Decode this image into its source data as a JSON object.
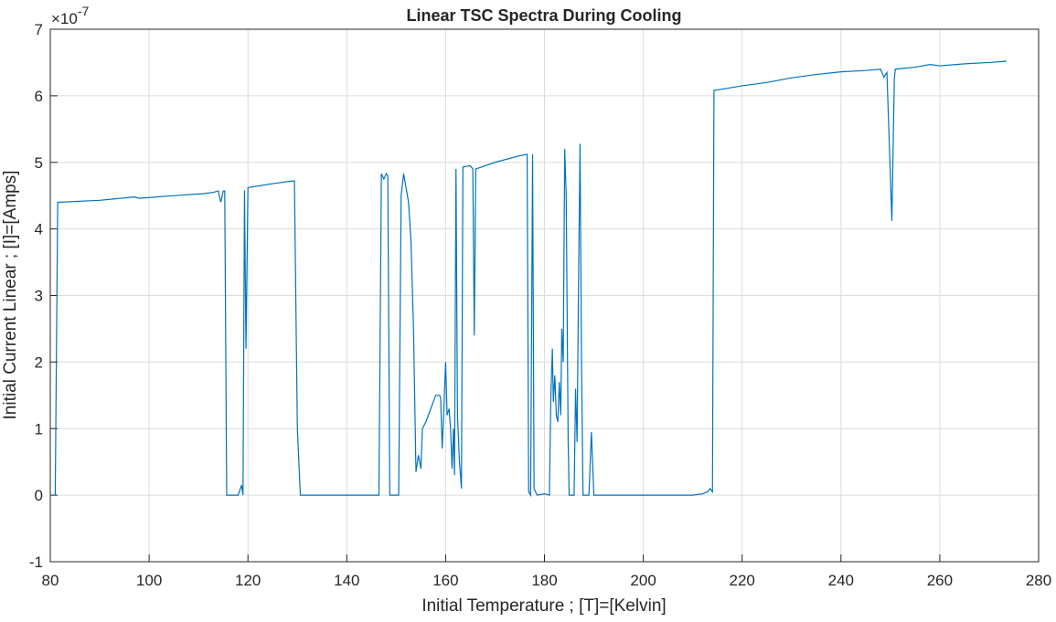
{
  "chart_data": {
    "type": "line",
    "title": "Linear TSC Spectra During Cooling",
    "x_label": "Initial Temperature ; [T]=[Kelvin]",
    "y_label": "Initial Current Linear ; [I]=[Amps]",
    "y_multiplier": {
      "base": "×10",
      "exponent": "-7"
    },
    "x": [
      80.5,
      81,
      81.5,
      90,
      97,
      98,
      105,
      111,
      113,
      114,
      114.5,
      115,
      115.3,
      115.7,
      118,
      118.7,
      119,
      119.3,
      119.6,
      120,
      125,
      129,
      129.4,
      130,
      130.6,
      140,
      146.5,
      147,
      147.5,
      148,
      148.3,
      148.7,
      150.5,
      151,
      151.5,
      152.5,
      153,
      153.5,
      154,
      154.5,
      155,
      155.3,
      156,
      157,
      158,
      158.8,
      159,
      159.3,
      159.6,
      160,
      160.3,
      160.7,
      161,
      161.3,
      161.6,
      161.8,
      162.1,
      162.4,
      162.8,
      163,
      163.2,
      163.5,
      165,
      165.5,
      165.8,
      166.1,
      170,
      175,
      176.5,
      176.8,
      177.2,
      177.6,
      177.9,
      178.5,
      180,
      181,
      181.3,
      181.6,
      181.8,
      182.1,
      182.4,
      182.7,
      183,
      183.3,
      183.5,
      183.8,
      184.1,
      184.4,
      184.8,
      185,
      186,
      186.3,
      186.6,
      186.9,
      187.2,
      187.5,
      187.8,
      189,
      189.5,
      190,
      200,
      210,
      212,
      213,
      213.5,
      214,
      214.3,
      216,
      220,
      225,
      230,
      235,
      240,
      245,
      248,
      248.7,
      249.3,
      250.3,
      250.8,
      251,
      255,
      258,
      260,
      265,
      270,
      273.5
    ],
    "series": [
      {
        "name": "TSC",
        "color": "#0072bd",
        "values": [
          0,
          0,
          4.4,
          4.43,
          4.48,
          4.46,
          4.5,
          4.53,
          4.55,
          4.57,
          4.4,
          4.57,
          4.57,
          0,
          0,
          0.15,
          0,
          4.58,
          2.2,
          4.62,
          4.68,
          4.72,
          4.72,
          1,
          0,
          0,
          0,
          4.83,
          4.75,
          4.83,
          4.8,
          0,
          0,
          4.5,
          4.83,
          4.4,
          3.8,
          2.5,
          0.35,
          0.6,
          0.4,
          1,
          1.1,
          1.3,
          1.5,
          1.5,
          1.45,
          0.7,
          1.2,
          2,
          1.2,
          1.3,
          1,
          0.4,
          1,
          0.3,
          4.9,
          1.2,
          0.5,
          0.3,
          0.1,
          4.93,
          4.95,
          4.9,
          2.4,
          4.9,
          5,
          5.1,
          5.12,
          0.05,
          0,
          5.12,
          0.1,
          0,
          0.02,
          0,
          1.5,
          2.2,
          1.4,
          1.8,
          1.2,
          1.1,
          1.7,
          1.2,
          2.5,
          2,
          5.2,
          4.5,
          0.8,
          0,
          0,
          1.6,
          0.8,
          3.2,
          5.28,
          2,
          0,
          0,
          0.95,
          0,
          0,
          0,
          0.02,
          0.05,
          0.1,
          0.05,
          6.08,
          6.1,
          6.15,
          6.2,
          6.27,
          6.32,
          6.36,
          6.38,
          6.4,
          6.28,
          6.35,
          4.12,
          6.25,
          6.4,
          6.43,
          6.47,
          6.45,
          6.48,
          6.5,
          6.52
        ]
      }
    ],
    "xlim": [
      80,
      280
    ],
    "xticks": [
      80,
      100,
      120,
      140,
      160,
      180,
      200,
      220,
      240,
      260,
      280
    ],
    "ylim": [
      -1,
      7
    ],
    "yticks": [
      -1,
      0,
      1,
      2,
      3,
      4,
      5,
      6,
      7
    ],
    "grid": true
  }
}
